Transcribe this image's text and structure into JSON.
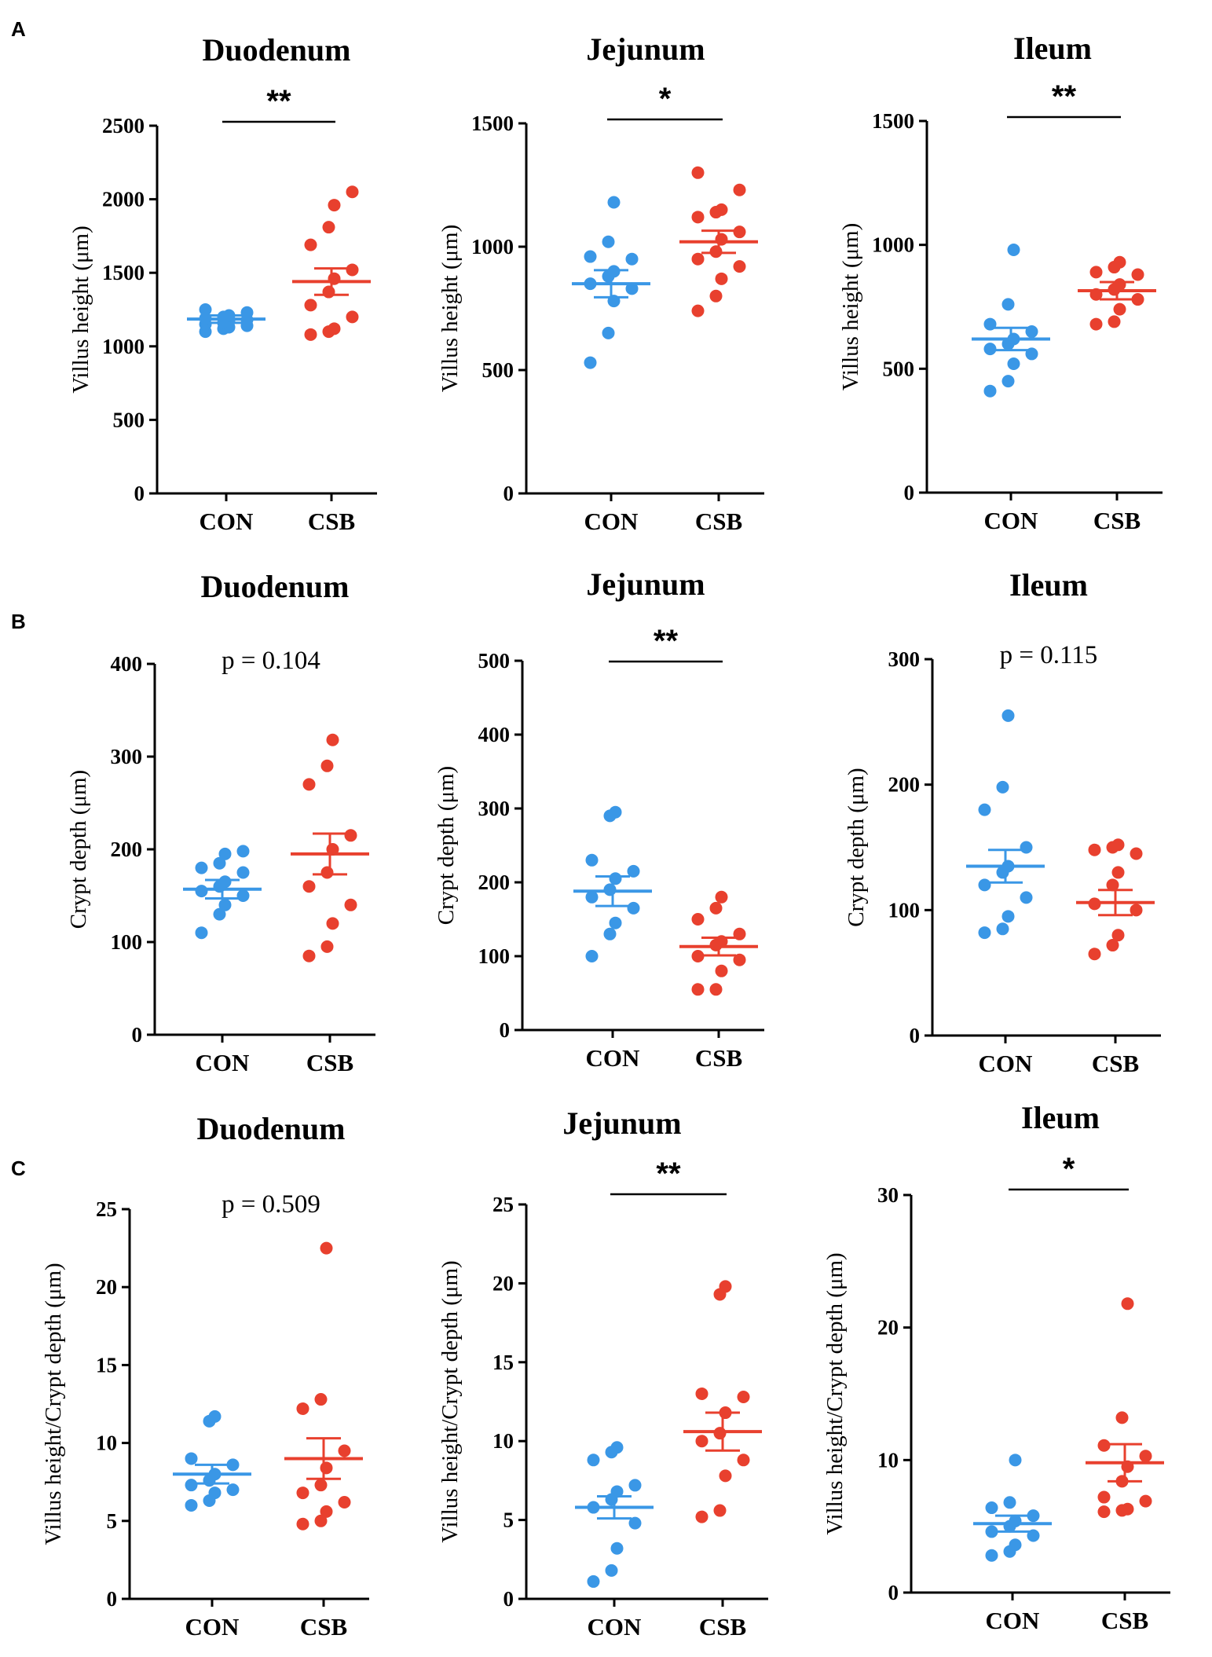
{
  "colors": {
    "CON": "#3a97e6",
    "CSB": "#e8402e",
    "axis": "#000000"
  },
  "panels": [
    {
      "label": "A"
    },
    {
      "label": "B"
    },
    {
      "label": "C"
    }
  ],
  "chart_data": [
    {
      "panel": "A",
      "type": "scatter",
      "title": "Duodenum",
      "ylabel": "Villus height (μm)",
      "ylim": [
        0,
        2500
      ],
      "yticks": [
        "0",
        "500",
        "1000",
        "1500",
        "2000",
        "2500"
      ],
      "categories": [
        "CON",
        "CSB"
      ],
      "series": [
        {
          "name": "CON",
          "mean": 1185,
          "sem": 25,
          "values": [
            1100,
            1120,
            1130,
            1140,
            1150,
            1160,
            1170,
            1180,
            1190,
            1200,
            1210,
            1230,
            1250
          ]
        },
        {
          "name": "CSB",
          "mean": 1440,
          "sem": 90,
          "values": [
            1080,
            1100,
            1120,
            1200,
            1280,
            1370,
            1460,
            1520,
            1690,
            1810,
            1960,
            2050
          ]
        }
      ],
      "significance": {
        "text": "**",
        "line": true
      }
    },
    {
      "panel": "A",
      "type": "scatter",
      "title": "Jejunum",
      "ylabel": "Villus height (μm)",
      "ylim": [
        0,
        1500
      ],
      "yticks": [
        "0",
        "500",
        "1000",
        "1500"
      ],
      "categories": [
        "CON",
        "CSB"
      ],
      "series": [
        {
          "name": "CON",
          "mean": 850,
          "sem": 55,
          "values": [
            530,
            650,
            780,
            830,
            850,
            880,
            900,
            950,
            960,
            1020,
            1180
          ]
        },
        {
          "name": "CSB",
          "mean": 1020,
          "sem": 45,
          "values": [
            740,
            800,
            870,
            920,
            950,
            980,
            1030,
            1060,
            1120,
            1140,
            1150,
            1230,
            1300
          ]
        }
      ],
      "significance": {
        "text": "*",
        "line": true
      }
    },
    {
      "panel": "A",
      "type": "scatter",
      "title": "Ileum",
      "ylabel": "Villus height (μm)",
      "ylim": [
        0,
        1500
      ],
      "yticks": [
        "0",
        "500",
        "1000",
        "1500"
      ],
      "categories": [
        "CON",
        "CSB"
      ],
      "series": [
        {
          "name": "CON",
          "mean": 620,
          "sem": 45,
          "values": [
            410,
            450,
            520,
            560,
            580,
            600,
            620,
            650,
            680,
            760,
            980
          ]
        },
        {
          "name": "CSB",
          "mean": 815,
          "sem": 35,
          "values": [
            680,
            690,
            740,
            780,
            800,
            820,
            840,
            880,
            890,
            910,
            930
          ]
        }
      ],
      "significance": {
        "text": "**",
        "line": true
      }
    },
    {
      "panel": "B",
      "type": "scatter",
      "title": "Duodenum",
      "ylabel": "Crypt depth (μm)",
      "ylim": [
        0,
        400
      ],
      "yticks": [
        "0",
        "100",
        "200",
        "300",
        "400"
      ],
      "categories": [
        "CON",
        "CSB"
      ],
      "series": [
        {
          "name": "CON",
          "mean": 157,
          "sem": 10,
          "values": [
            110,
            130,
            140,
            150,
            155,
            160,
            165,
            175,
            180,
            185,
            195,
            198
          ]
        },
        {
          "name": "CSB",
          "mean": 195,
          "sem": 22,
          "values": [
            85,
            95,
            120,
            140,
            160,
            175,
            200,
            215,
            270,
            290,
            318
          ]
        }
      ],
      "significance": {
        "text": "p = 0.104",
        "line": false
      }
    },
    {
      "panel": "B",
      "type": "scatter",
      "title": "Jejunum",
      "ylabel": "Crypt depth (μm)",
      "ylim": [
        0,
        500
      ],
      "yticks": [
        "0",
        "100",
        "200",
        "300",
        "400",
        "500"
      ],
      "categories": [
        "CON",
        "CSB"
      ],
      "series": [
        {
          "name": "CON",
          "mean": 188,
          "sem": 20,
          "values": [
            100,
            130,
            145,
            165,
            180,
            190,
            205,
            215,
            230,
            290,
            295
          ]
        },
        {
          "name": "CSB",
          "mean": 113,
          "sem": 12,
          "values": [
            55,
            55,
            80,
            95,
            100,
            115,
            120,
            130,
            150,
            165,
            180
          ]
        }
      ],
      "significance": {
        "text": "**",
        "line": true
      }
    },
    {
      "panel": "B",
      "type": "scatter",
      "title": "Ileum",
      "ylabel": "Crypt depth (μm)",
      "ylim": [
        0,
        300
      ],
      "yticks": [
        "0",
        "100",
        "200",
        "300"
      ],
      "categories": [
        "CON",
        "CSB"
      ],
      "series": [
        {
          "name": "CON",
          "mean": 135,
          "sem": 13,
          "values": [
            82,
            85,
            95,
            110,
            120,
            130,
            135,
            150,
            180,
            198,
            255
          ]
        },
        {
          "name": "CSB",
          "mean": 106,
          "sem": 10,
          "values": [
            65,
            72,
            80,
            100,
            105,
            120,
            130,
            145,
            148,
            150,
            152
          ]
        }
      ],
      "significance": {
        "text": "p = 0.115",
        "line": false
      }
    },
    {
      "panel": "C",
      "type": "scatter",
      "title": "Duodenum",
      "ylabel": "Villus height/Crypt depth (μm)",
      "ylim": [
        0,
        25
      ],
      "yticks": [
        "0",
        "5",
        "10",
        "15",
        "20",
        "25"
      ],
      "categories": [
        "CON",
        "CSB"
      ],
      "series": [
        {
          "name": "CON",
          "mean": 8.0,
          "sem": 0.6,
          "values": [
            6.0,
            6.3,
            6.8,
            7.0,
            7.3,
            7.6,
            8.0,
            8.6,
            9.0,
            11.4,
            11.7
          ]
        },
        {
          "name": "CSB",
          "mean": 9.0,
          "sem": 1.3,
          "values": [
            4.8,
            5.0,
            5.6,
            6.2,
            6.8,
            7.3,
            8.4,
            9.5,
            12.2,
            12.8,
            22.5
          ]
        }
      ],
      "significance": {
        "text": "p = 0.509",
        "line": false
      }
    },
    {
      "panel": "C",
      "type": "scatter",
      "title": "Jejunum",
      "ylabel": "Villus height/Crypt depth (μm)",
      "ylim": [
        0,
        25
      ],
      "yticks": [
        "0",
        "5",
        "10",
        "15",
        "20",
        "25"
      ],
      "categories": [
        "CON",
        "CSB"
      ],
      "series": [
        {
          "name": "CON",
          "mean": 5.8,
          "sem": 0.7,
          "values": [
            1.1,
            1.8,
            3.2,
            4.8,
            5.8,
            6.3,
            6.8,
            7.2,
            8.8,
            9.3,
            9.6
          ]
        },
        {
          "name": "CSB",
          "mean": 10.6,
          "sem": 1.2,
          "values": [
            5.2,
            5.6,
            7.8,
            8.8,
            10.0,
            10.5,
            11.8,
            12.8,
            13.0,
            19.3,
            19.8
          ]
        }
      ],
      "significance": {
        "text": "**",
        "line": true
      }
    },
    {
      "panel": "C",
      "type": "scatter",
      "title": "Ileum",
      "ylabel": "Villus height/Crypt depth (μm)",
      "ylim": [
        0,
        30
      ],
      "yticks": [
        "0",
        "10",
        "20",
        "30"
      ],
      "categories": [
        "CON",
        "CSB"
      ],
      "series": [
        {
          "name": "CON",
          "mean": 5.2,
          "sem": 0.6,
          "values": [
            2.8,
            3.1,
            3.6,
            4.3,
            4.6,
            5.0,
            5.4,
            5.8,
            6.4,
            6.8,
            10.0
          ]
        },
        {
          "name": "CSB",
          "mean": 9.8,
          "sem": 1.4,
          "values": [
            6.1,
            6.2,
            6.3,
            6.9,
            7.2,
            8.4,
            9.5,
            10.3,
            11.1,
            13.2,
            21.8
          ]
        }
      ],
      "significance": {
        "text": "*",
        "line": true
      }
    }
  ]
}
